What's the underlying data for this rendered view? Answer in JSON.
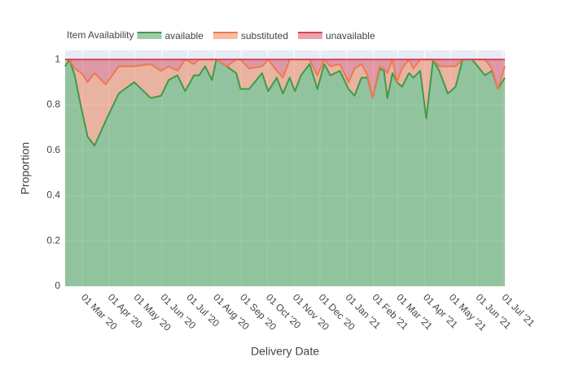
{
  "chart_data": {
    "type": "stacked_area",
    "legend_title": "Item Availability",
    "xlabel": "Delivery Date",
    "ylabel": "Proportion",
    "legend_position": "top",
    "grid": true,
    "x": [
      "2020-02-10",
      "2020-02-15",
      "2020-02-21",
      "2020-02-29",
      "2020-03-07",
      "2020-03-15",
      "2020-03-28",
      "2020-04-12",
      "2020-04-30",
      "2020-05-19",
      "2020-05-31",
      "2020-06-09",
      "2020-06-19",
      "2020-06-28",
      "2020-07-08",
      "2020-07-14",
      "2020-07-21",
      "2020-07-29",
      "2020-08-03",
      "2020-08-15",
      "2020-08-26",
      "2020-08-31",
      "2020-09-10",
      "2020-09-25",
      "2020-10-02",
      "2020-10-12",
      "2020-10-19",
      "2020-10-27",
      "2020-11-02",
      "2020-11-09",
      "2020-11-19",
      "2020-11-28",
      "2020-12-06",
      "2020-12-13",
      "2020-12-24",
      "2021-01-03",
      "2021-01-10",
      "2021-01-18",
      "2021-01-25",
      "2021-01-31",
      "2021-02-08",
      "2021-02-13",
      "2021-02-17",
      "2021-02-23",
      "2021-02-28",
      "2021-03-06",
      "2021-03-14",
      "2021-03-19",
      "2021-03-27",
      "2021-04-03",
      "2021-04-11",
      "2021-04-18",
      "2021-04-28",
      "2021-05-07",
      "2021-05-15",
      "2021-05-26",
      "2021-06-10",
      "2021-06-18",
      "2021-06-25",
      "2021-07-03"
    ],
    "series": [
      {
        "name": "available",
        "color": "#3f9a47",
        "values": [
          0.97,
          1,
          0.93,
          0.78,
          0.66,
          0.62,
          0.73,
          0.85,
          0.9,
          0.83,
          0.84,
          0.91,
          0.93,
          0.86,
          0.93,
          0.93,
          0.97,
          0.91,
          1,
          0.97,
          0.94,
          0.87,
          0.87,
          0.94,
          0.86,
          0.92,
          0.85,
          0.92,
          0.86,
          0.93,
          0.98,
          0.87,
          0.98,
          0.93,
          0.95,
          0.87,
          0.84,
          0.92,
          0.92,
          0.83,
          0.96,
          0.95,
          0.83,
          0.94,
          0.9,
          0.88,
          0.94,
          0.92,
          0.95,
          0.74,
          1,
          0.95,
          0.85,
          0.88,
          1,
          1,
          0.93,
          0.95,
          0.87,
          0.92
        ]
      },
      {
        "name": "substituted",
        "color": "#ee7a4e",
        "values": [
          0.03,
          0,
          0.03,
          0.16,
          0.24,
          0.32,
          0.16,
          0.12,
          0.07,
          0.15,
          0.11,
          0.06,
          0.02,
          0.14,
          0.05,
          0.07,
          0.03,
          0.09,
          0,
          0,
          0.06,
          0.13,
          0.09,
          0.03,
          0.14,
          0.03,
          0.07,
          0.08,
          0.14,
          0.07,
          0.02,
          0.06,
          0.02,
          0.04,
          0.03,
          0.03,
          0.12,
          0.06,
          0.01,
          0,
          0.01,
          0.01,
          0.11,
          0.06,
          0,
          0.08,
          0.06,
          0.04,
          0.05,
          0.26,
          0,
          0.02,
          0.12,
          0.09,
          0,
          0,
          0.07,
          0.01,
          0,
          0.05
        ]
      },
      {
        "name": "unavailable",
        "color": "#d6455a",
        "values": [
          0,
          0,
          0.04,
          0.06,
          0.1,
          0.06,
          0.11,
          0.03,
          0.03,
          0.02,
          0.05,
          0.03,
          0.05,
          0,
          0.02,
          0,
          0,
          0,
          0,
          0.03,
          0,
          0,
          0.04,
          0.03,
          0,
          0.05,
          0.08,
          0,
          0,
          0,
          0,
          0.07,
          0,
          0.03,
          0.02,
          0.1,
          0.04,
          0.02,
          0.07,
          0.17,
          0.03,
          0.04,
          0.06,
          0,
          0.1,
          0.04,
          0,
          0.04,
          0,
          0,
          0,
          0.03,
          0.03,
          0.03,
          0,
          0,
          0,
          0.04,
          0.13,
          0.03
        ]
      }
    ],
    "xlim": [
      "2020-02-10",
      "2021-07-03"
    ],
    "xticks": [
      {
        "value": "2020-03-01",
        "label": "01 Mar '20"
      },
      {
        "value": "2020-04-01",
        "label": "01 Apr '20"
      },
      {
        "value": "2020-05-01",
        "label": "01 May '20"
      },
      {
        "value": "2020-06-01",
        "label": "01 Jun '20"
      },
      {
        "value": "2020-07-01",
        "label": "01 Jul '20"
      },
      {
        "value": "2020-08-01",
        "label": "01 Aug '20"
      },
      {
        "value": "2020-09-01",
        "label": "01 Sep '20"
      },
      {
        "value": "2020-10-01",
        "label": "01 Oct '20"
      },
      {
        "value": "2020-11-01",
        "label": "01 Nov '20"
      },
      {
        "value": "2020-12-01",
        "label": "01 Dec '20"
      },
      {
        "value": "2021-01-01",
        "label": "01 Jan '21"
      },
      {
        "value": "2021-02-01",
        "label": "01 Feb '21"
      },
      {
        "value": "2021-03-01",
        "label": "01 Mar '21"
      },
      {
        "value": "2021-04-01",
        "label": "01 Apr '21"
      },
      {
        "value": "2021-05-01",
        "label": "01 May '21"
      },
      {
        "value": "2021-06-01",
        "label": "01 Jun '21"
      },
      {
        "value": "2021-07-01",
        "label": "01 Jul '21"
      }
    ],
    "ylim": [
      0,
      1.04
    ],
    "yticks": [
      0,
      0.2,
      0.4,
      0.6,
      0.8,
      1
    ]
  }
}
